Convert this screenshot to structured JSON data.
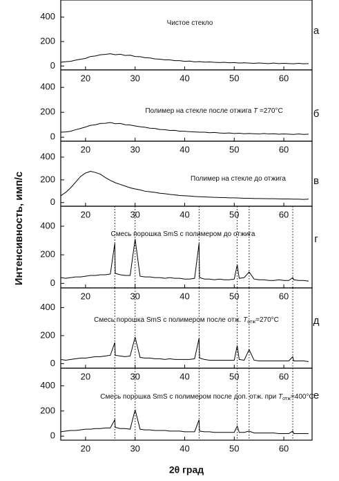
{
  "figure": {
    "ylabel": "Интенсивность, имп/с",
    "xlabel": "2θ град"
  },
  "chart_data": [
    {
      "type": "line",
      "letter": "а",
      "annotation": [
        "Чистое стекло"
      ],
      "annotation_style": [
        "normal"
      ],
      "xlim": [
        15,
        65.7
      ],
      "ylim": [
        -32,
        540
      ],
      "xticks": [
        20,
        30,
        40,
        50,
        60
      ],
      "yticks": [
        0,
        200,
        400
      ],
      "color": "#000000",
      "x": [
        15,
        16,
        17,
        18,
        19,
        20,
        21,
        22,
        23,
        24,
        25,
        26,
        27,
        28,
        29,
        30,
        31,
        32,
        33,
        34,
        35,
        36,
        37,
        38,
        39,
        40,
        41,
        42,
        43,
        44,
        45,
        46,
        47,
        48,
        49,
        50,
        51,
        52,
        53,
        54,
        55,
        56,
        57,
        58,
        59,
        60,
        61,
        62,
        63,
        64,
        65
      ],
      "values": [
        30,
        35,
        38,
        48,
        55,
        62,
        78,
        82,
        92,
        95,
        100,
        92,
        96,
        86,
        88,
        78,
        76,
        68,
        66,
        58,
        56,
        50,
        50,
        44,
        44,
        38,
        40,
        34,
        36,
        32,
        33,
        30,
        28,
        30,
        26,
        28,
        24,
        26,
        24,
        22,
        25,
        22,
        20,
        24,
        20,
        22,
        20,
        18,
        22,
        18,
        20
      ]
    },
    {
      "type": "line",
      "letter": "б",
      "annotation": [
        "Полимер на стекле после отжига ",
        "T",
        " =270°C"
      ],
      "annotation_style": [
        "normal",
        "italic",
        "normal"
      ],
      "xlim": [
        15,
        65.7
      ],
      "ylim": [
        -32,
        540
      ],
      "xticks": [
        20,
        30,
        40,
        50,
        60
      ],
      "yticks": [
        0,
        200,
        400
      ],
      "color": "#000000",
      "x": [
        15,
        16,
        17,
        18,
        19,
        20,
        21,
        22,
        23,
        24,
        25,
        26,
        27,
        28,
        29,
        30,
        31,
        32,
        33,
        34,
        35,
        36,
        37,
        38,
        39,
        40,
        41,
        42,
        43,
        44,
        45,
        46,
        47,
        48,
        49,
        50,
        51,
        52,
        53,
        54,
        55,
        56,
        57,
        58,
        59,
        60,
        61,
        62,
        63,
        64,
        65
      ],
      "values": [
        40,
        42,
        48,
        60,
        70,
        82,
        95,
        100,
        110,
        112,
        118,
        108,
        110,
        100,
        98,
        90,
        84,
        80,
        72,
        70,
        62,
        60,
        54,
        55,
        48,
        48,
        44,
        42,
        40,
        40,
        36,
        38,
        34,
        32,
        34,
        30,
        32,
        28,
        30,
        28,
        26,
        30,
        26,
        28,
        24,
        26,
        24,
        22,
        26,
        22,
        24
      ]
    },
    {
      "type": "line",
      "letter": "в",
      "annotation": [
        "Полимер на стекле до отжига"
      ],
      "annotation_style": [
        "normal"
      ],
      "xlim": [
        15,
        65.7
      ],
      "ylim": [
        -32,
        540
      ],
      "xticks": [
        20,
        30,
        40,
        50,
        60
      ],
      "yticks": [
        0,
        200,
        400
      ],
      "color": "#000000",
      "x": [
        15,
        16,
        17,
        18,
        19,
        20,
        21,
        22,
        23,
        24,
        25,
        26,
        27,
        28,
        29,
        30,
        31,
        32,
        33,
        34,
        35,
        36,
        37,
        38,
        39,
        40,
        41,
        42,
        43,
        44,
        45,
        46,
        47,
        48,
        49,
        50,
        51,
        52,
        53,
        54,
        55,
        56,
        57,
        58,
        59,
        60,
        61,
        62,
        63,
        64,
        65
      ],
      "values": [
        60,
        90,
        130,
        180,
        230,
        260,
        275,
        265,
        250,
        220,
        195,
        175,
        160,
        145,
        130,
        120,
        112,
        100,
        95,
        90,
        82,
        78,
        72,
        68,
        62,
        60,
        58,
        54,
        52,
        50,
        48,
        46,
        45,
        44,
        42,
        42,
        40,
        38,
        38,
        36,
        36,
        35,
        34,
        34,
        33,
        32,
        32,
        30,
        30,
        28,
        30
      ]
    },
    {
      "type": "line",
      "letter": "г",
      "annotation": [
        "Смесь порошка SmS с полимером до отжига"
      ],
      "annotation_style": [
        "normal"
      ],
      "xlim": [
        15,
        65.7
      ],
      "ylim": [
        -32,
        540
      ],
      "xticks": [
        20,
        30,
        40,
        50,
        60
      ],
      "yticks": [
        0,
        200,
        400
      ],
      "color": "#000000",
      "vlines": [
        25.9,
        30,
        42.9,
        50.6,
        53,
        61.8
      ],
      "x": [
        15,
        16,
        17,
        18,
        19,
        20,
        21,
        22,
        23,
        24,
        25,
        25.9,
        26,
        27,
        28,
        29,
        30,
        31,
        32,
        33,
        34,
        35,
        36,
        37,
        38,
        39,
        40,
        41,
        42,
        42.9,
        43,
        44,
        45,
        46,
        47,
        48,
        49,
        50,
        50.6,
        51,
        52,
        53,
        54,
        55,
        56,
        57,
        58,
        59,
        60,
        61,
        61.8,
        62,
        63,
        64,
        65
      ],
      "values": [
        40,
        35,
        40,
        45,
        45,
        50,
        55,
        55,
        60,
        60,
        65,
        280,
        70,
        60,
        55,
        55,
        310,
        50,
        45,
        45,
        40,
        40,
        35,
        40,
        35,
        35,
        30,
        30,
        35,
        280,
        40,
        30,
        30,
        25,
        30,
        25,
        25,
        30,
        130,
        35,
        40,
        80,
        30,
        25,
        25,
        20,
        20,
        25,
        20,
        20,
        40,
        25,
        20,
        20,
        15
      ]
    },
    {
      "type": "line",
      "letter": "д",
      "annotation": [
        "Смесь порошка SmS с полимером после отж. ",
        "T",
        "отж",
        "=270°C"
      ],
      "annotation_style": [
        "normal",
        "italic",
        "sub",
        "normal"
      ],
      "xlim": [
        15,
        65.7
      ],
      "ylim": [
        -32,
        540
      ],
      "xticks": [
        20,
        30,
        40,
        50,
        60
      ],
      "yticks": [
        0,
        200,
        400
      ],
      "color": "#000000",
      "vlines": [
        25.9,
        30,
        42.9,
        50.6,
        53,
        61.8
      ],
      "x": [
        15,
        16,
        17,
        18,
        19,
        20,
        21,
        22,
        23,
        24,
        25,
        25.9,
        26,
        27,
        28,
        29,
        30,
        31,
        32,
        33,
        34,
        35,
        36,
        37,
        38,
        39,
        40,
        41,
        42,
        42.9,
        43,
        44,
        45,
        46,
        47,
        48,
        49,
        50,
        50.6,
        51,
        52,
        53,
        54,
        55,
        56,
        57,
        58,
        59,
        60,
        61,
        61.8,
        62,
        63,
        64,
        65
      ],
      "values": [
        30,
        25,
        30,
        35,
        40,
        40,
        45,
        50,
        50,
        55,
        60,
        150,
        60,
        55,
        50,
        55,
        190,
        45,
        40,
        40,
        35,
        35,
        30,
        35,
        30,
        30,
        30,
        30,
        35,
        180,
        40,
        30,
        25,
        25,
        25,
        25,
        25,
        25,
        130,
        30,
        25,
        100,
        25,
        20,
        20,
        20,
        20,
        20,
        20,
        20,
        50,
        20,
        20,
        20,
        15
      ]
    },
    {
      "type": "line",
      "letter": "е",
      "annotation": [
        "Смесь порошка SmS с полимером после доп. отж. при ",
        "T",
        "отж",
        "=400°C"
      ],
      "annotation_style": [
        "normal",
        "italic",
        "sub",
        "normal"
      ],
      "xlim": [
        15,
        65.7
      ],
      "ylim": [
        -32,
        540
      ],
      "xticks": [
        20,
        30,
        40,
        50,
        60
      ],
      "yticks": [
        0,
        200,
        400
      ],
      "color": "#000000",
      "vlines": [
        25.9,
        30,
        42.9,
        50.6,
        53,
        61.8
      ],
      "x": [
        15,
        16,
        17,
        18,
        19,
        20,
        21,
        22,
        23,
        24,
        25,
        25.9,
        26,
        27,
        28,
        29,
        30,
        31,
        32,
        33,
        34,
        35,
        36,
        37,
        38,
        39,
        40,
        41,
        42,
        42.9,
        43,
        44,
        45,
        46,
        47,
        48,
        49,
        50,
        50.6,
        51,
        52,
        53,
        54,
        55,
        56,
        57,
        58,
        59,
        60,
        61,
        61.8,
        62,
        63,
        64,
        65
      ],
      "values": [
        35,
        40,
        45,
        45,
        50,
        55,
        55,
        60,
        60,
        65,
        65,
        130,
        70,
        60,
        60,
        55,
        210,
        55,
        50,
        50,
        45,
        45,
        45,
        40,
        40,
        40,
        35,
        35,
        35,
        130,
        40,
        35,
        35,
        30,
        30,
        30,
        30,
        30,
        80,
        30,
        30,
        40,
        25,
        25,
        25,
        25,
        25,
        20,
        20,
        20,
        40,
        20,
        20,
        20,
        20
      ]
    }
  ]
}
